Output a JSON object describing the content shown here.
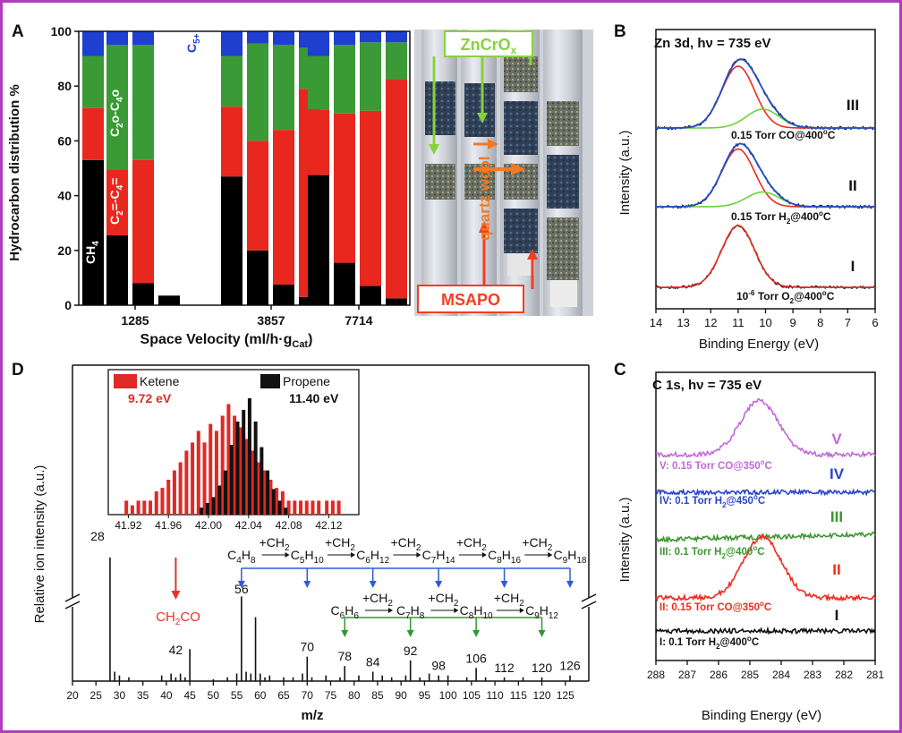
{
  "panel_labels": {
    "a": "A",
    "b": "B",
    "c": "C",
    "d": "D"
  },
  "colors": {
    "ch4": "#000000",
    "c2_c4_ene": "#e8281e",
    "c2_c4_ane": "#3a9a35",
    "c5plus": "#1f3fd0",
    "fit_red": "#ec2a1e",
    "fit_green": "#6ad23a",
    "fit_blue": "#2450c8",
    "ketene": "#de2a26",
    "propene": "#111111",
    "spec_v": "#c168d8",
    "spec_iv": "#2a45c8",
    "spec_iii": "#3c9630",
    "spec_ii": "#ef2b1e",
    "spec_i": "#111111",
    "frame": "#b23bc0",
    "arrow_blue": "#2d5cd8",
    "arrow_green": "#2f9a2f",
    "photo_green": "#86d23e",
    "photo_red": "#f33d21"
  },
  "photo": {
    "zncrox_label": "ZnCrO",
    "zncrox_sub": "x",
    "quartz_label": "quartz wool",
    "msapo_label": "MSAPO"
  },
  "chart_data": [
    {
      "id": "A",
      "type": "bar",
      "stacked": true,
      "xlabel": "Space Velocity (ml/h·g",
      "xlabel_sub": "Cat",
      "xlabel_end": ")",
      "ylabel": "Hydrocarbon distribution %",
      "ylim": [
        0,
        100
      ],
      "yticks": [
        0,
        20,
        40,
        60,
        80,
        100
      ],
      "groups": [
        "1285",
        "3857",
        "7714"
      ],
      "series_names": [
        "CH4",
        "C2=-C4=",
        "C2o-C4o",
        "C5+"
      ],
      "bars": [
        {
          "group": "1285",
          "CH4": 53,
          "C2=-C4=": 19,
          "C2o-C4o": 19,
          "C5+": 9
        },
        {
          "group": "1285",
          "CH4": 25.5,
          "C2=-C4=": 24,
          "C2o-C4o": 45.5,
          "C5+": 5
        },
        {
          "group": "1285",
          "CH4": 8,
          "C2=-C4=": 45,
          "C2o-C4o": 42,
          "C5+": 5
        },
        {
          "group": "1285",
          "CH4": 3.5,
          "C2=-C4=": 0,
          "C2o-C4o": 0,
          "C5+": 0
        },
        {
          "group": "3857",
          "CH4": 47,
          "C2=-C4=": 25.5,
          "C2o-C4o": 18.5,
          "C5+": 9
        },
        {
          "group": "3857",
          "CH4": 20,
          "C2=-C4=": 40,
          "C2o-C4o": 35.5,
          "C5+": 4.5
        },
        {
          "group": "3857",
          "CH4": 7.5,
          "C2=-C4=": 56.5,
          "C2o-C4o": 31,
          "C5+": 5
        },
        {
          "group": "3857",
          "CH4": 3,
          "C2=-C4=": 76,
          "C2o-C4o": 15,
          "C5+": 6
        },
        {
          "group": "7714",
          "CH4": 47.5,
          "C2=-C4=": 24,
          "C2o-C4o": 19.5,
          "C5+": 9
        },
        {
          "group": "7714",
          "CH4": 15.5,
          "C2=-C4=": 54.5,
          "C2o-C4o": 25,
          "C5+": 5
        },
        {
          "group": "7714",
          "CH4": 7,
          "C2=-C4=": 64,
          "C2o-C4o": 25,
          "C5+": 4
        },
        {
          "group": "7714",
          "CH4": 2.5,
          "C2=-C4=": 80,
          "C2o-C4o": 13.5,
          "C5+": 4
        }
      ],
      "annotations": {
        "ch4_main": "CH",
        "ch4_sub": "4",
        "c5_main": "C",
        "c5_sub": "5+",
        "olefin_text": "C",
        "olefin_sub1": "2",
        "olefin_mid": "=-C",
        "olefin_sub2": "4",
        "olefin_end": "=",
        "paraffin_text": "C",
        "paraffin_sub1": "2",
        "paraffin_mid": "o-C",
        "paraffin_sub2": "4",
        "paraffin_end": "o"
      }
    },
    {
      "id": "B",
      "type": "line",
      "title": "Zn 3d, hν = 735 eV",
      "xlabel": "Binding Energy (eV)",
      "ylabel": "Intensity (a.u.)",
      "xlim": [
        14,
        6
      ],
      "xticks": [
        14,
        13,
        12,
        11,
        10,
        9,
        8,
        7,
        6
      ],
      "spectra": [
        {
          "label": "III",
          "condition": "0.15 Torr CO@400°C",
          "offset": 2,
          "main_peak_eV": 11.0,
          "main_amp": 0.92,
          "shoulder_eV": 10.1,
          "shoulder_amp": 0.28
        },
        {
          "label": "II",
          "condition": "0.15 Torr H2@400°C",
          "offset": 1,
          "main_peak_eV": 11.0,
          "main_amp": 0.86,
          "shoulder_eV": 10.1,
          "shoulder_amp": 0.22
        },
        {
          "label": "I",
          "condition": "10-6 Torr O2@400°C",
          "offset": 0,
          "main_peak_eV": 11.0,
          "main_amp": 0.92,
          "shoulder_eV": null,
          "shoulder_amp": 0
        }
      ],
      "condition_parts": [
        {
          "main": "0.15 Torr CO@400",
          "sup": "o",
          "end": "C"
        },
        {
          "main": "0.15 Torr H",
          "sub": "2",
          "mid": "@400",
          "sup": "o",
          "end": "C"
        },
        {
          "main": "10",
          "sup0": "-6",
          "mid0": " Torr O",
          "sub": "2",
          "mid": "@400",
          "sup": "o",
          "end": "C"
        }
      ]
    },
    {
      "id": "C",
      "type": "line",
      "title": "C 1s, hν = 735 eV",
      "xlabel": "Binding Energy (eV)",
      "ylabel": "Intensity (a.u.)",
      "xlim": [
        288,
        281
      ],
      "xticks": [
        288,
        287,
        286,
        285,
        284,
        283,
        282,
        281
      ],
      "spectra": [
        {
          "label": "V",
          "condition": "V: 0.15 Torr CO@350°C",
          "peak_eV": 284.7,
          "amp": 0.55
        },
        {
          "label": "IV",
          "condition": "IV: 0.1 Torr H2@450°C",
          "peak_eV": null,
          "amp": 0
        },
        {
          "label": "III",
          "condition": "III: 0.1 Torr H2@400°C",
          "peak_eV": null,
          "amp": 0
        },
        {
          "label": "II",
          "condition": "II: 0.15 Torr CO@350°C",
          "peak_eV": 284.6,
          "amp": 0.62
        },
        {
          "label": "I",
          "condition": "I: 0.1 Torr H2@400°C",
          "peak_eV": null,
          "amp": 0
        }
      ],
      "condition_parts": [
        {
          "main": "V: 0.15 Torr CO@350",
          "sup": "o",
          "end": "C"
        },
        {
          "main": "IV: 0.1 Torr H",
          "sub": "2",
          "mid": "@450",
          "sup": "o",
          "end": "C"
        },
        {
          "main": "III: 0.1 Torr H",
          "sub": "2",
          "mid": "@400",
          "sup": "o",
          "end": "C"
        },
        {
          "main": "II: 0.15 Torr CO@350",
          "sup": "o",
          "end": "C"
        },
        {
          "main": "I: 0.1 Torr H",
          "sub": "2",
          "mid": "@400",
          "sup": "o",
          "end": "C"
        }
      ]
    },
    {
      "id": "D",
      "type": "bar",
      "xlabel": "m/z",
      "ylabel": "Relative ion intensity (a.u.)",
      "xlim": [
        20,
        130
      ],
      "xticks": [
        20,
        25,
        30,
        35,
        40,
        45,
        50,
        55,
        60,
        65,
        70,
        75,
        80,
        85,
        90,
        95,
        100,
        105,
        110,
        115,
        120,
        125
      ],
      "peaks": [
        {
          "mz": 28,
          "rel": 1.0,
          "label": "28"
        },
        {
          "mz": 29,
          "rel": 0.05
        },
        {
          "mz": 30,
          "rel": 0.03
        },
        {
          "mz": 32,
          "rel": 0.02
        },
        {
          "mz": 39,
          "rel": 0.03
        },
        {
          "mz": 41,
          "rel": 0.04
        },
        {
          "mz": 42,
          "rel": 0.02,
          "label": "42"
        },
        {
          "mz": 43,
          "rel": 0.04
        },
        {
          "mz": 44,
          "rel": 0.02
        },
        {
          "mz": 45,
          "rel": 0.17
        },
        {
          "mz": 50,
          "rel": 0.01
        },
        {
          "mz": 53,
          "rel": 0.02
        },
        {
          "mz": 55,
          "rel": 0.04
        },
        {
          "mz": 56,
          "rel": 0.45,
          "label": "56"
        },
        {
          "mz": 57,
          "rel": 0.05
        },
        {
          "mz": 58,
          "rel": 0.04
        },
        {
          "mz": 59,
          "rel": 0.34
        },
        {
          "mz": 60,
          "rel": 0.04
        },
        {
          "mz": 61,
          "rel": 0.02
        },
        {
          "mz": 62,
          "rel": 0.03
        },
        {
          "mz": 65,
          "rel": 0.02
        },
        {
          "mz": 67,
          "rel": 0.02
        },
        {
          "mz": 69,
          "rel": 0.04
        },
        {
          "mz": 70,
          "rel": 0.13,
          "label": "70"
        },
        {
          "mz": 71,
          "rel": 0.02
        },
        {
          "mz": 74,
          "rel": 0.03
        },
        {
          "mz": 77,
          "rel": 0.02
        },
        {
          "mz": 78,
          "rel": 0.08,
          "label": "78"
        },
        {
          "mz": 81,
          "rel": 0.03
        },
        {
          "mz": 84,
          "rel": 0.05,
          "label": "84"
        },
        {
          "mz": 86,
          "rel": 0.03
        },
        {
          "mz": 88,
          "rel": 0.02
        },
        {
          "mz": 91,
          "rel": 0.03
        },
        {
          "mz": 92,
          "rel": 0.11,
          "label": "92"
        },
        {
          "mz": 94,
          "rel": 0.02
        },
        {
          "mz": 96,
          "rel": 0.04
        },
        {
          "mz": 98,
          "rel": 0.03,
          "label": "98"
        },
        {
          "mz": 100,
          "rel": 0.03
        },
        {
          "mz": 104,
          "rel": 0.02
        },
        {
          "mz": 106,
          "rel": 0.07,
          "label": "106"
        },
        {
          "mz": 108,
          "rel": 0.02
        },
        {
          "mz": 112,
          "rel": 0.02,
          "label": "112"
        },
        {
          "mz": 116,
          "rel": 0.02
        },
        {
          "mz": 120,
          "rel": 0.02,
          "label": "120"
        },
        {
          "mz": 126,
          "rel": 0.03,
          "label": "126"
        }
      ],
      "annotations": {
        "ch2co_main": "CH",
        "ch2co_sub": "2",
        "ch2co_end": "CO"
      },
      "chain1_species": [
        {
          "c": "4",
          "h": "8",
          "mz": 56
        },
        {
          "c": "5",
          "h": "10",
          "mz": 70
        },
        {
          "c": "6",
          "h": "12",
          "mz": 84
        },
        {
          "c": "7",
          "h": "14",
          "mz": 98
        },
        {
          "c": "8",
          "h": "16",
          "mz": 112
        },
        {
          "c": "9",
          "h": "18",
          "mz": 126
        }
      ],
      "chain2_species": [
        {
          "c": "6",
          "h": "6",
          "mz": 78
        },
        {
          "c": "7",
          "h": "8",
          "mz": 92
        },
        {
          "c": "8",
          "h": "10",
          "mz": 106
        },
        {
          "c": "9",
          "h": "12",
          "mz": 120
        }
      ],
      "step_label": {
        "main": "+CH",
        "sub": "2"
      },
      "inset": {
        "type": "bar",
        "legend": [
          {
            "name": "Ketene",
            "energy": "9.72 eV"
          },
          {
            "name": "Propene",
            "energy": "11.40 eV"
          }
        ],
        "xlim": [
          41.9,
          42.15
        ],
        "xticks": [
          "41.92",
          "41.96",
          "42.00",
          "42.04",
          "42.08",
          "42.12"
        ],
        "ketene": [
          {
            "x": 41.918,
            "v": 0.12
          },
          {
            "x": 41.924,
            "v": 0.08
          },
          {
            "x": 41.93,
            "v": 0.12
          },
          {
            "x": 41.936,
            "v": 0.12
          },
          {
            "x": 41.942,
            "v": 0.12
          },
          {
            "x": 41.948,
            "v": 0.2
          },
          {
            "x": 41.954,
            "v": 0.23
          },
          {
            "x": 41.96,
            "v": 0.3
          },
          {
            "x": 41.966,
            "v": 0.38
          },
          {
            "x": 41.972,
            "v": 0.45
          },
          {
            "x": 41.978,
            "v": 0.55
          },
          {
            "x": 41.984,
            "v": 0.62
          },
          {
            "x": 41.99,
            "v": 0.72
          },
          {
            "x": 41.996,
            "v": 0.62
          },
          {
            "x": 42.002,
            "v": 0.78
          },
          {
            "x": 42.008,
            "v": 0.72
          },
          {
            "x": 42.014,
            "v": 0.85
          },
          {
            "x": 42.02,
            "v": 0.95
          },
          {
            "x": 42.026,
            "v": 0.85
          },
          {
            "x": 42.032,
            "v": 0.75
          },
          {
            "x": 42.038,
            "v": 0.65
          },
          {
            "x": 42.044,
            "v": 0.55
          },
          {
            "x": 42.05,
            "v": 0.45
          },
          {
            "x": 42.056,
            "v": 0.38
          },
          {
            "x": 42.062,
            "v": 0.3
          },
          {
            "x": 42.068,
            "v": 0.23
          },
          {
            "x": 42.074,
            "v": 0.2
          },
          {
            "x": 42.08,
            "v": 0.12
          },
          {
            "x": 42.086,
            "v": 0.12
          },
          {
            "x": 42.092,
            "v": 0.12
          },
          {
            "x": 42.098,
            "v": 0.12
          },
          {
            "x": 42.104,
            "v": 0.12
          },
          {
            "x": 42.11,
            "v": 0.12
          },
          {
            "x": 42.118,
            "v": 0.12
          },
          {
            "x": 42.124,
            "v": 0.12
          },
          {
            "x": 42.13,
            "v": 0.12
          }
        ],
        "propene": [
          {
            "x": 41.993,
            "v": 0.06
          },
          {
            "x": 41.999,
            "v": 0.1
          },
          {
            "x": 42.005,
            "v": 0.15
          },
          {
            "x": 42.011,
            "v": 0.25
          },
          {
            "x": 42.017,
            "v": 0.38
          },
          {
            "x": 42.023,
            "v": 0.6
          },
          {
            "x": 42.029,
            "v": 0.8
          },
          {
            "x": 42.035,
            "v": 0.9
          },
          {
            "x": 42.041,
            "v": 1.0
          },
          {
            "x": 42.047,
            "v": 0.8
          },
          {
            "x": 42.053,
            "v": 0.58
          },
          {
            "x": 42.059,
            "v": 0.38
          },
          {
            "x": 42.065,
            "v": 0.22
          },
          {
            "x": 42.071,
            "v": 0.12
          },
          {
            "x": 42.077,
            "v": 0.06
          }
        ]
      }
    }
  ]
}
